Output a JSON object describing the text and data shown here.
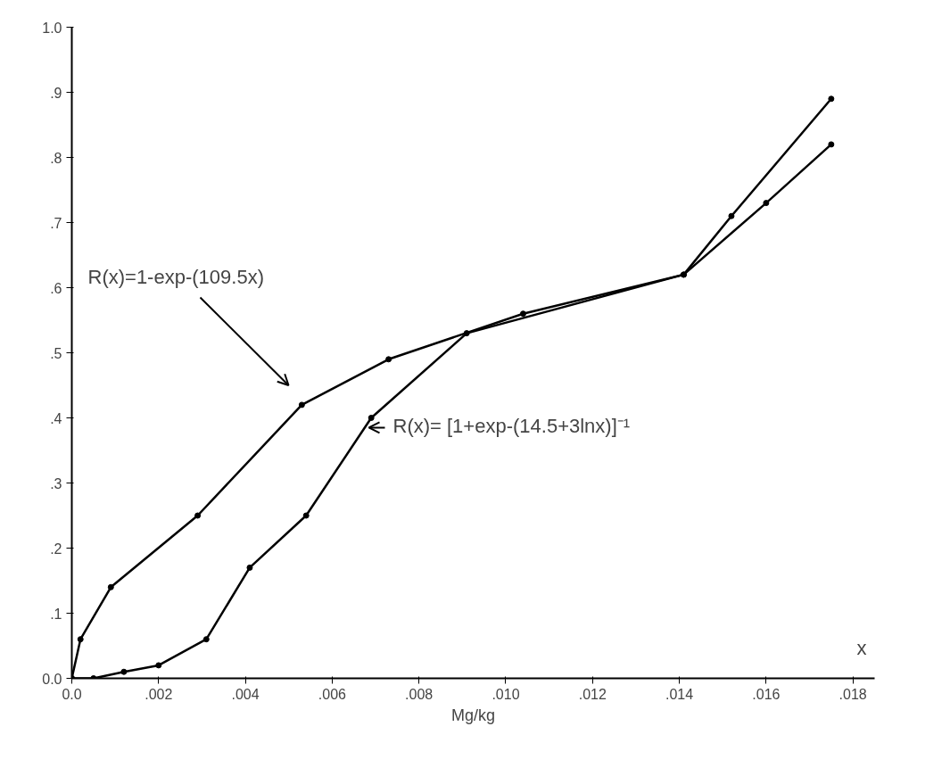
{
  "chart_data": {
    "type": "line",
    "xlabel": "Mg/kg",
    "xlim": [
      0,
      0.0185
    ],
    "ylim": [
      0,
      1.0
    ],
    "xticks": [
      {
        "value": 0,
        "label": "0.0"
      },
      {
        "value": 0.002,
        "label": ".002"
      },
      {
        "value": 0.004,
        "label": ".004"
      },
      {
        "value": 0.006,
        "label": ".006"
      },
      {
        "value": 0.008,
        "label": ".008"
      },
      {
        "value": 0.01,
        "label": ".010"
      },
      {
        "value": 0.012,
        "label": ".012"
      },
      {
        "value": 0.014,
        "label": ".014"
      },
      {
        "value": 0.016,
        "label": ".016"
      },
      {
        "value": 0.018,
        "label": ".018"
      }
    ],
    "yticks": [
      {
        "value": 0,
        "label": "0.0"
      },
      {
        "value": 0.1,
        "label": ".1"
      },
      {
        "value": 0.2,
        "label": ".2"
      },
      {
        "value": 0.3,
        "label": ".3"
      },
      {
        "value": 0.4,
        "label": ".4"
      },
      {
        "value": 0.5,
        "label": ".5"
      },
      {
        "value": 0.6,
        "label": ".6"
      },
      {
        "value": 0.7,
        "label": ".7"
      },
      {
        "value": 0.8,
        "label": ".8"
      },
      {
        "value": 0.9,
        "label": ".9"
      },
      {
        "value": 1.0,
        "label": "1.0"
      }
    ],
    "series": [
      {
        "color": "#000000",
        "x": [
          0,
          0.0002,
          0.0009,
          0.0029,
          0.0053,
          0.0073,
          0.0104,
          0.0141,
          0.016,
          0.0175
        ],
        "values": [
          0,
          0.06,
          0.14,
          0.25,
          0.42,
          0.49,
          0.56,
          0.62,
          0.73,
          0.82
        ]
      },
      {
        "color": "#000000",
        "x": [
          0,
          0.0005,
          0.0012,
          0.002,
          0.0031,
          0.0041,
          0.0054,
          0.0069,
          0.0091,
          0.0141,
          0.0152,
          0.0175
        ],
        "values": [
          0,
          0,
          0.01,
          0.02,
          0.06,
          0.17,
          0.25,
          0.4,
          0.53,
          0.62,
          0.71,
          0.89
        ]
      }
    ],
    "annotations": [
      "R(x)=1-exp-(109.5x)",
      "R(x)= [1+exp-(14.5+3lnx)]⁻¹",
      "x"
    ],
    "marker": "circle",
    "line_style": "solid",
    "grid": false
  }
}
